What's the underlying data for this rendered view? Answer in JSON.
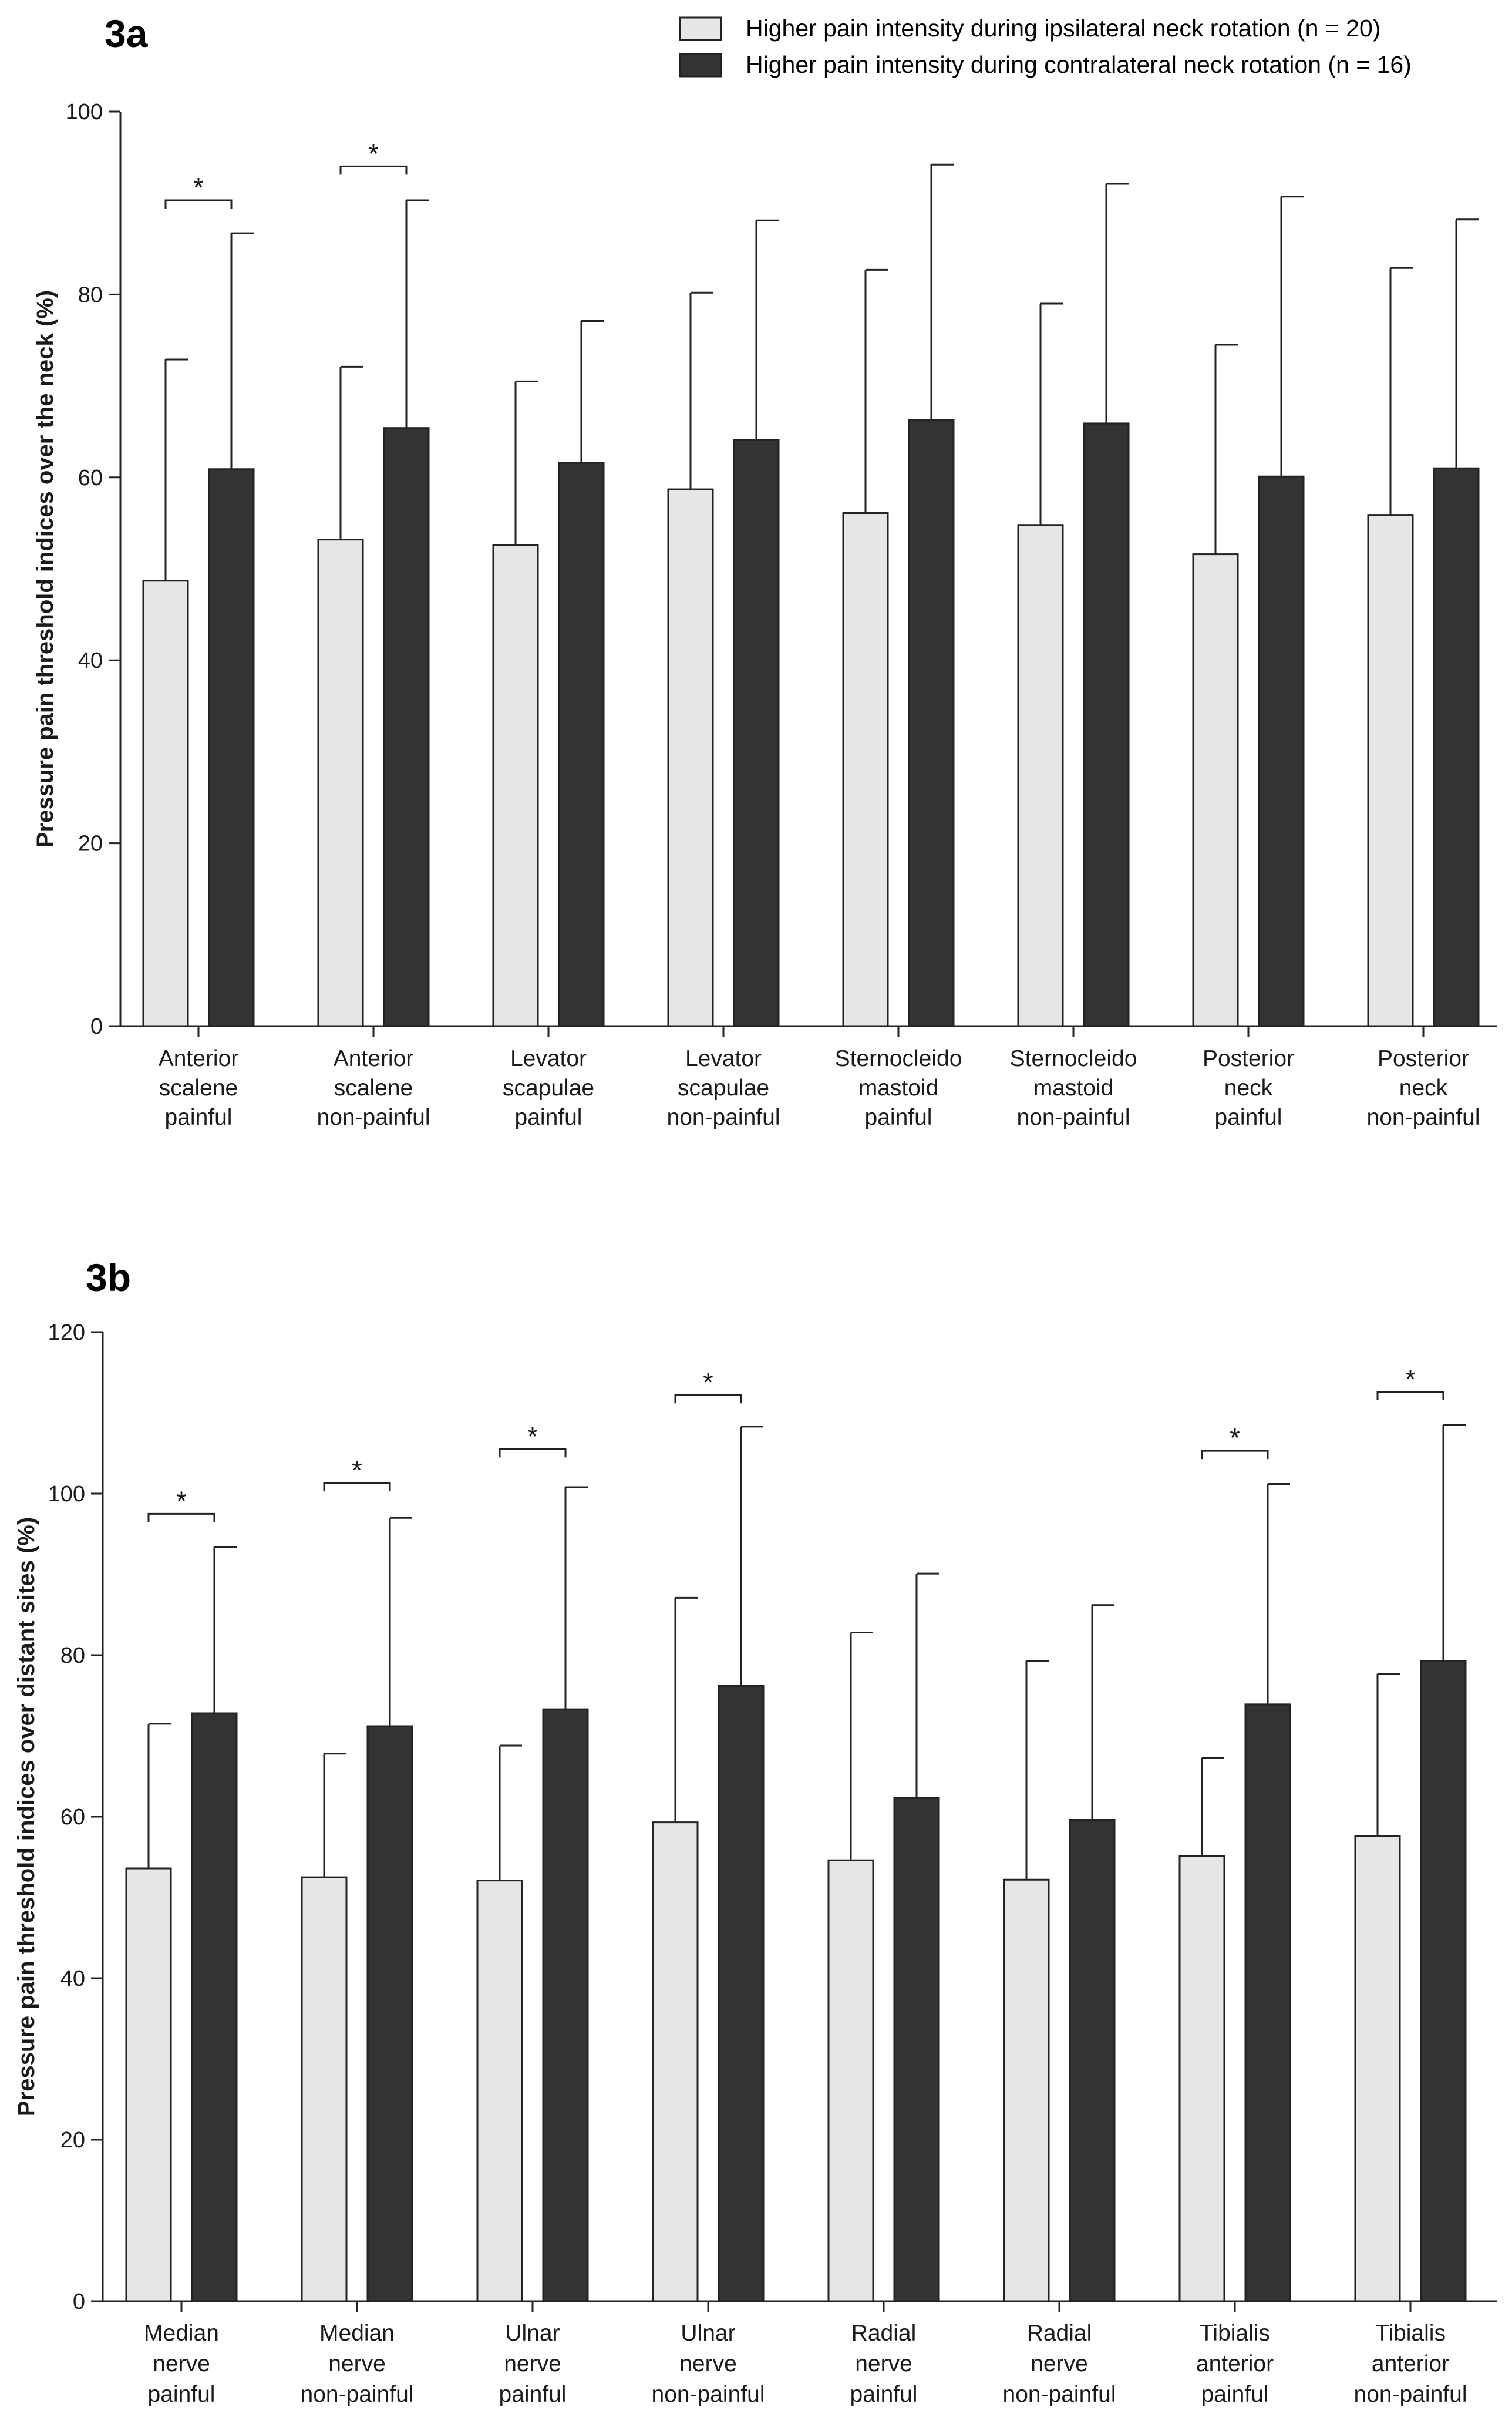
{
  "legend": {
    "ipsilateral": "Higher pain intensity during ipsilateral neck rotation (n = 20)",
    "contralateral": "Higher pain intensity during contralateral neck rotation (n = 16)"
  },
  "colors": {
    "ipsilateral": "#e6e6e6",
    "contralateral": "#333333",
    "axis": "#222222"
  },
  "chart_data": [
    {
      "type": "bar",
      "panel": "3a",
      "title": "",
      "xlabel": "",
      "ylabel": "Pressure pain threshold indices over the neck (%)",
      "ylim": [
        0,
        100
      ],
      "yticks": [
        0,
        20,
        40,
        60,
        80,
        100
      ],
      "grid": false,
      "legend_position": "top-right",
      "categories": [
        [
          "Anterior",
          "scalene",
          "painful"
        ],
        [
          "Anterior",
          "scalene",
          "non-painful"
        ],
        [
          "Levator",
          "scapulae",
          "painful"
        ],
        [
          "Levator",
          "scapulae",
          "non-painful"
        ],
        [
          "Sternocleido",
          "mastoid",
          "painful"
        ],
        [
          "Sternocleido",
          "mastoid",
          "non-painful"
        ],
        [
          "Posterior",
          "neck",
          "painful"
        ],
        [
          "Posterior",
          "neck",
          "non-painful"
        ]
      ],
      "series": [
        {
          "name": "Higher pain intensity during ipsilateral neck rotation (n = 20)",
          "values": [
            48.7,
            53.2,
            52.6,
            58.7,
            56.1,
            54.8,
            51.6,
            55.9
          ],
          "error_upper": [
            72.9,
            72.1,
            70.5,
            80.2,
            82.7,
            79.0,
            74.5,
            82.9
          ]
        },
        {
          "name": "Higher pain intensity during contralateral neck rotation (n = 16)",
          "values": [
            60.9,
            65.4,
            61.6,
            64.1,
            66.3,
            65.9,
            60.1,
            61.0
          ],
          "error_upper": [
            86.7,
            90.3,
            77.1,
            88.1,
            94.2,
            92.1,
            90.7,
            88.2
          ]
        }
      ],
      "significance": [
        {
          "category": 0,
          "bracket_y": 90.3,
          "label": "*"
        },
        {
          "category": 1,
          "bracket_y": 94.0,
          "label": "*"
        }
      ]
    },
    {
      "type": "bar",
      "panel": "3b",
      "title": "",
      "xlabel": "",
      "ylabel": "Pressure pain threshold indices over distant sites (%)",
      "ylim": [
        0,
        120
      ],
      "yticks": [
        0,
        20,
        40,
        60,
        80,
        100,
        120
      ],
      "grid": false,
      "categories": [
        [
          "Median",
          "nerve",
          "painful"
        ],
        [
          "Median",
          "nerve",
          "non-painful"
        ],
        [
          "Ulnar",
          "nerve",
          "painful"
        ],
        [
          "Ulnar",
          "nerve",
          "non-painful"
        ],
        [
          "Radial",
          "nerve",
          "painful"
        ],
        [
          "Radial",
          "nerve",
          "non-painful"
        ],
        [
          "Tibialis",
          "anterior",
          "painful"
        ],
        [
          "Tibialis",
          "anterior",
          "non-painful"
        ]
      ],
      "series": [
        {
          "name": "Higher pain intensity during ipsilateral neck rotation (n = 20)",
          "values": [
            53.6,
            52.5,
            52.1,
            59.3,
            54.6,
            52.2,
            55.1,
            57.6
          ],
          "error_upper": [
            71.5,
            67.8,
            68.8,
            87.1,
            82.8,
            79.3,
            67.3,
            77.7
          ]
        },
        {
          "name": "Higher pain intensity during contralateral neck rotation (n = 16)",
          "values": [
            72.8,
            71.2,
            73.3,
            76.2,
            62.3,
            59.6,
            73.9,
            79.3
          ],
          "error_upper": [
            93.4,
            97.0,
            100.8,
            108.3,
            90.1,
            86.2,
            101.2,
            108.5
          ]
        }
      ],
      "significance": [
        {
          "category": 0,
          "bracket_y": 97.5,
          "label": "*"
        },
        {
          "category": 1,
          "bracket_y": 101.3,
          "label": "*"
        },
        {
          "category": 2,
          "bracket_y": 105.5,
          "label": "*"
        },
        {
          "category": 3,
          "bracket_y": 112.2,
          "label": "*"
        },
        {
          "category": 6,
          "bracket_y": 105.3,
          "label": "*"
        },
        {
          "category": 7,
          "bracket_y": 112.6,
          "label": "*"
        }
      ]
    }
  ]
}
